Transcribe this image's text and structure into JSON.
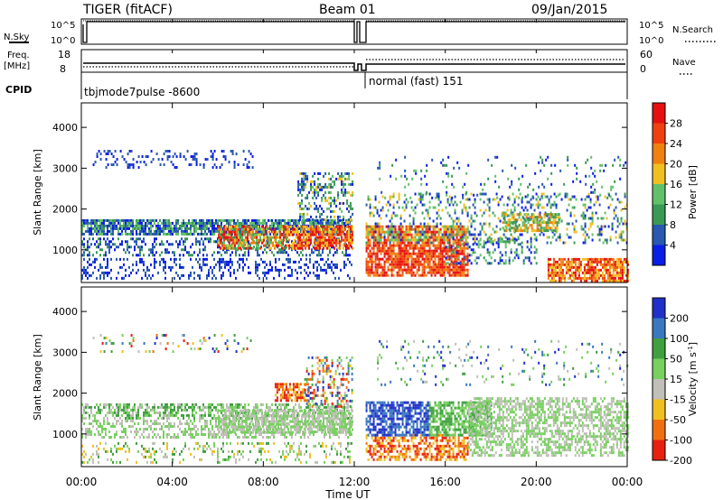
{
  "header": {
    "title": "TIGER (fitACF)",
    "beam": "Beam 01",
    "date": "09/Jan/2015"
  },
  "colors": {
    "power_scale": [
      "#0a1ee6",
      "#2858b0",
      "#3a9a55",
      "#62c06a",
      "#f0c020",
      "#f08010",
      "#f04010",
      "#e61010"
    ],
    "velocity_scale": [
      "#2030c8",
      "#3a78c0",
      "#40a040",
      "#78d060",
      "#c0c0b8",
      "#f0c020",
      "#f07010",
      "#e82010"
    ]
  },
  "chart_data": [
    {
      "type": "line",
      "name": "status-noise",
      "left_label": "N.Sky",
      "right_label": "N.Search",
      "left_ticks": [
        "10^5",
        "10^0"
      ],
      "right_ticks": [
        "10^5",
        "10^0"
      ],
      "ylim": [
        0,
        5
      ]
    },
    {
      "type": "line",
      "name": "status-freq",
      "left_label_lines": [
        "Freq.",
        "[MHz]"
      ],
      "right_label": "Nave",
      "left_ticks": [
        "18",
        "8"
      ],
      "right_ticks": [
        "60",
        "0"
      ],
      "ylim": [
        8,
        18
      ]
    },
    {
      "type": "table",
      "name": "cpid",
      "label": "CPID",
      "modes": [
        {
          "text": "tbjmode7pulse -8600",
          "start_h": 0,
          "end_h": 11.9
        },
        {
          "text": "normal (fast) 151",
          "start_h": 12.5,
          "end_h": 24
        }
      ]
    },
    {
      "type": "heatmap",
      "name": "power-panel",
      "ylabel": "Slant Range [km]",
      "xlim": [
        0,
        24
      ],
      "ylim": [
        200,
        4600
      ],
      "yticks": [
        1000,
        2000,
        3000,
        4000
      ],
      "colorbar": {
        "label": "Power [dB]",
        "ticks": [
          4,
          8,
          12,
          16,
          20,
          24,
          28
        ],
        "range": [
          0,
          32
        ]
      },
      "data_gap_h": [
        11.9,
        12.5
      ]
    },
    {
      "type": "heatmap",
      "name": "velocity-panel",
      "ylabel": "Slant Range [km]",
      "xlabel": "Time UT",
      "xlim": [
        0,
        24
      ],
      "ylim": [
        200,
        4600
      ],
      "yticks": [
        1000,
        2000,
        3000,
        4000
      ],
      "xticks": [
        "00:00",
        "04:00",
        "08:00",
        "12:00",
        "16:00",
        "20:00",
        "00:00"
      ],
      "colorbar": {
        "label": "Velocity [m s^-1]",
        "ticks": [
          200,
          100,
          50,
          15,
          -15,
          -50,
          -100,
          -200
        ]
      },
      "data_gap_h": [
        11.9,
        12.5
      ]
    }
  ]
}
